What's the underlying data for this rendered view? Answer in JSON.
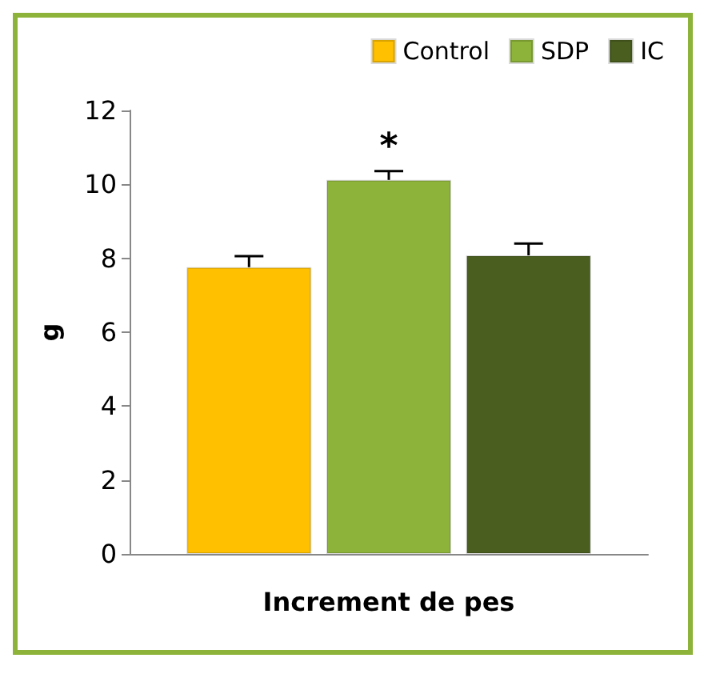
{
  "chart_data": {
    "type": "bar",
    "xlabel": "Increment de pes",
    "ylabel": "g",
    "categories": [
      null
    ],
    "series": [
      {
        "name": "Control",
        "color": "#ffc000",
        "values": [
          7.76
        ],
        "errors": [
          0.3
        ]
      },
      {
        "name": "SDP",
        "color": "#8db33a",
        "values": [
          10.12
        ],
        "errors": [
          0.24
        ]
      },
      {
        "name": "IC",
        "color": "#4a5e1f",
        "values": [
          8.08
        ],
        "errors": [
          0.32
        ]
      }
    ],
    "ylim": [
      0,
      12
    ],
    "yticks": [
      0,
      2,
      4,
      6,
      8,
      10,
      12
    ],
    "grid": false,
    "legend": "top right",
    "annotations": [
      "*"
    ]
  }
}
